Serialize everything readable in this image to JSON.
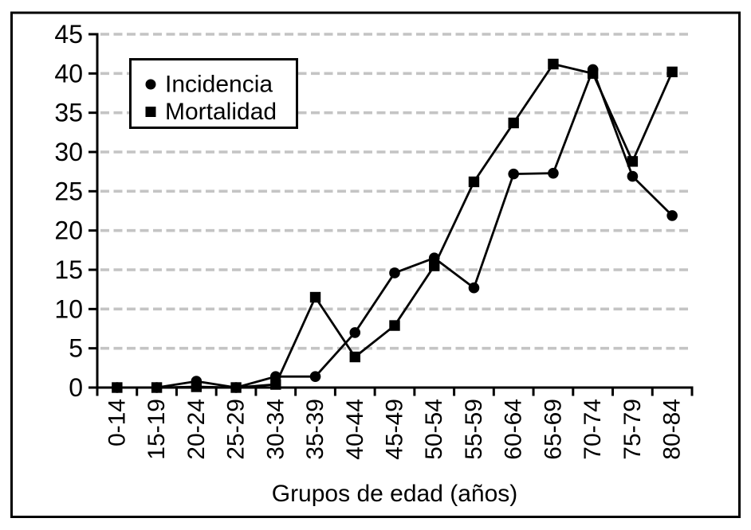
{
  "chart_data": {
    "type": "line",
    "title": "",
    "xlabel": "Grupos de edad (años)",
    "ylabel": "",
    "categories": [
      "0-14",
      "15-19",
      "20-24",
      "25-29",
      "30-34",
      "35-39",
      "40-44",
      "45-49",
      "50-54",
      "55-59",
      "60-64",
      "65-69",
      "70-74",
      "75-79",
      "80-84"
    ],
    "series": [
      {
        "name": "Incidencia",
        "marker": "circle",
        "color": "#000000",
        "values": [
          0,
          0,
          0.8,
          0,
          1.4,
          1.4,
          7.0,
          14.6,
          16.5,
          12.7,
          27.2,
          27.3,
          40.5,
          26.9,
          21.9
        ]
      },
      {
        "name": "Mortalidad",
        "marker": "square",
        "color": "#000000",
        "values": [
          0,
          0,
          0.1,
          0,
          0.4,
          11.5,
          3.9,
          7.9,
          15.5,
          26.2,
          33.7,
          41.2,
          40.0,
          28.8,
          40.2
        ]
      }
    ],
    "ylim": [
      0,
      45
    ],
    "yticks": [
      0,
      5,
      10,
      15,
      20,
      25,
      30,
      35,
      40,
      45
    ],
    "grid": "horizontal-dashed",
    "gridline_color": "#c4c4c4",
    "axis_color": "#000000",
    "frame_color": "#000000",
    "background_color": "#ffffff",
    "legend_position": "top-left"
  }
}
